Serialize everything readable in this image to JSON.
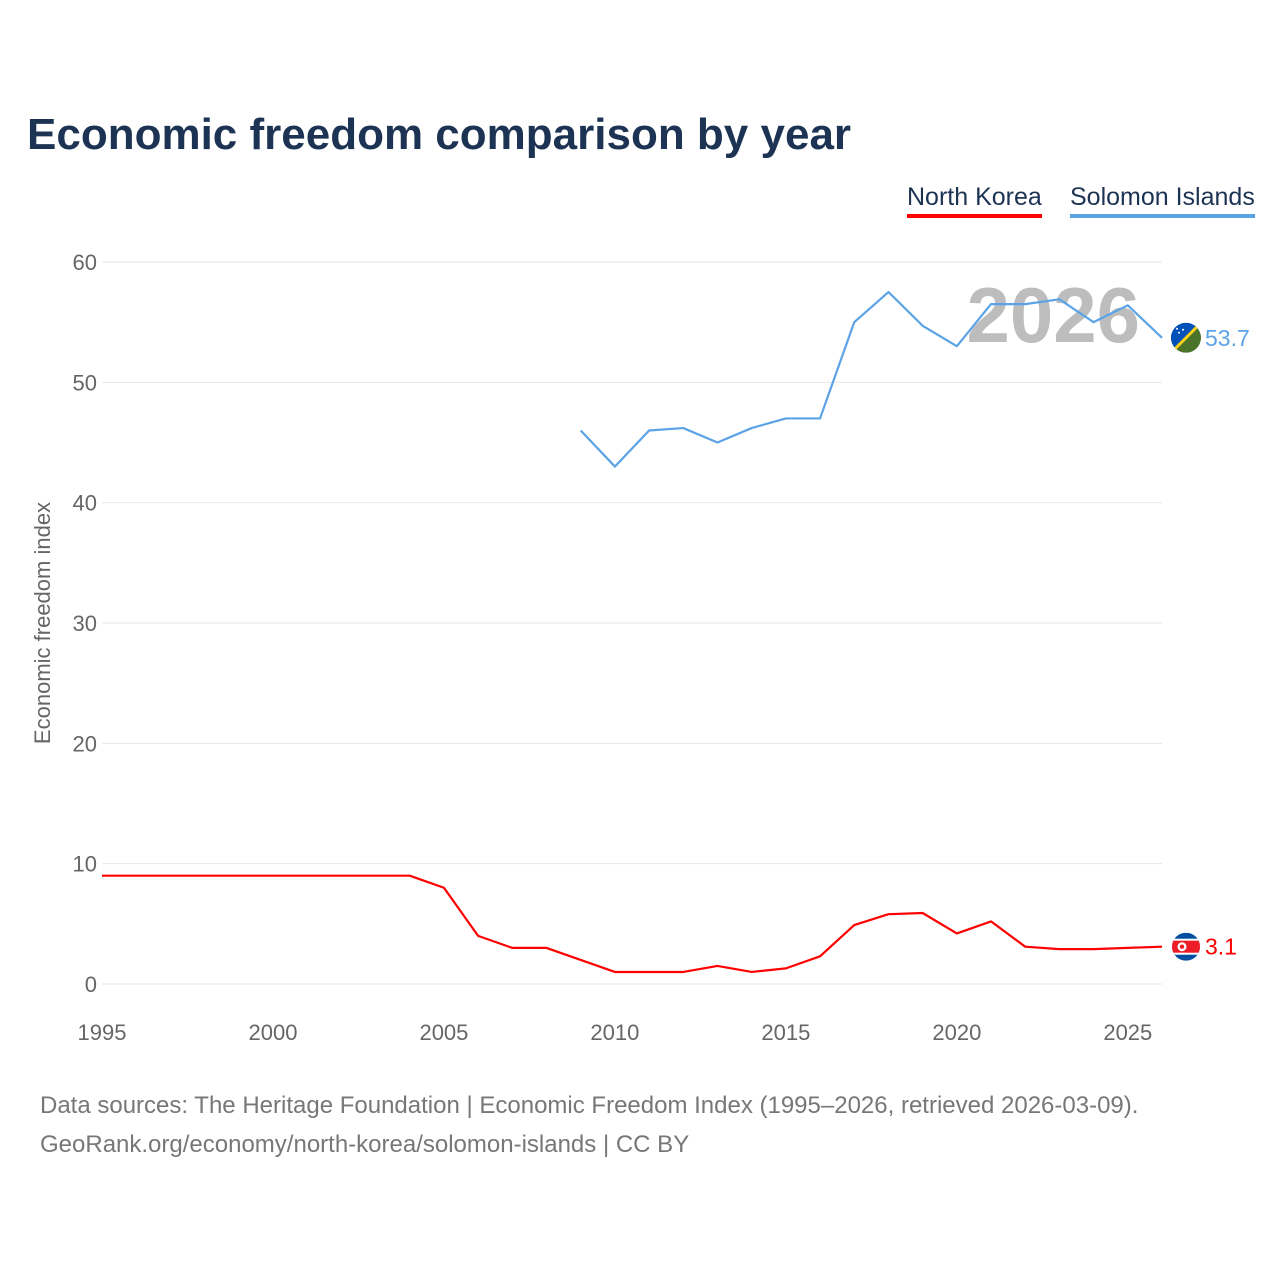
{
  "chart_data": {
    "type": "line",
    "title": "Economic freedom comparison by year",
    "xlabel": "",
    "ylabel": "Economic freedom index",
    "xlim": [
      1995,
      2026
    ],
    "ylim": [
      0,
      60
    ],
    "yticks": [
      "0",
      "10",
      "20",
      "30",
      "40",
      "50",
      "60"
    ],
    "xticks": [
      "1995",
      "2000",
      "2005",
      "2010",
      "2015",
      "2020",
      "2025"
    ],
    "grid": true,
    "legend_placement": "top-right",
    "year_watermark": "2026",
    "series": [
      {
        "name": "North Korea",
        "color": "#ff0000",
        "end_label": "3.1",
        "flag": "north-korea-flag",
        "x": [
          1995,
          1996,
          1997,
          1998,
          1999,
          2000,
          2001,
          2002,
          2003,
          2004,
          2005,
          2006,
          2007,
          2008,
          2009,
          2010,
          2011,
          2012,
          2013,
          2014,
          2015,
          2016,
          2017,
          2018,
          2019,
          2020,
          2021,
          2022,
          2023,
          2024,
          2025,
          2026
        ],
        "values": [
          9,
          9,
          9,
          9,
          9,
          9,
          9,
          9,
          9,
          9,
          8,
          4,
          3,
          3,
          2,
          1,
          1,
          1,
          1.5,
          1,
          1.3,
          2.3,
          4.9,
          5.8,
          5.9,
          4.2,
          5.2,
          3.1,
          2.9,
          2.9,
          3.0,
          3.1
        ]
      },
      {
        "name": "Solomon Islands",
        "color": "#5ba3e6",
        "end_label": "53.7",
        "flag": "solomon-islands-flag",
        "x": [
          2009,
          2010,
          2011,
          2012,
          2013,
          2014,
          2015,
          2016,
          2017,
          2018,
          2019,
          2020,
          2021,
          2022,
          2023,
          2024,
          2025,
          2026
        ],
        "values": [
          46,
          43,
          46,
          46.2,
          45,
          46.2,
          47,
          47,
          55,
          57.5,
          54.7,
          53,
          56.5,
          56.5,
          56.9,
          55,
          56.4,
          53.7
        ]
      }
    ]
  },
  "footer": {
    "line1": "Data sources: The Heritage Foundation | Economic Freedom Index (1995–2026, retrieved 2026-03-09).",
    "line2": "GeoRank.org/economy/north-korea/solomon-islands | CC BY"
  }
}
